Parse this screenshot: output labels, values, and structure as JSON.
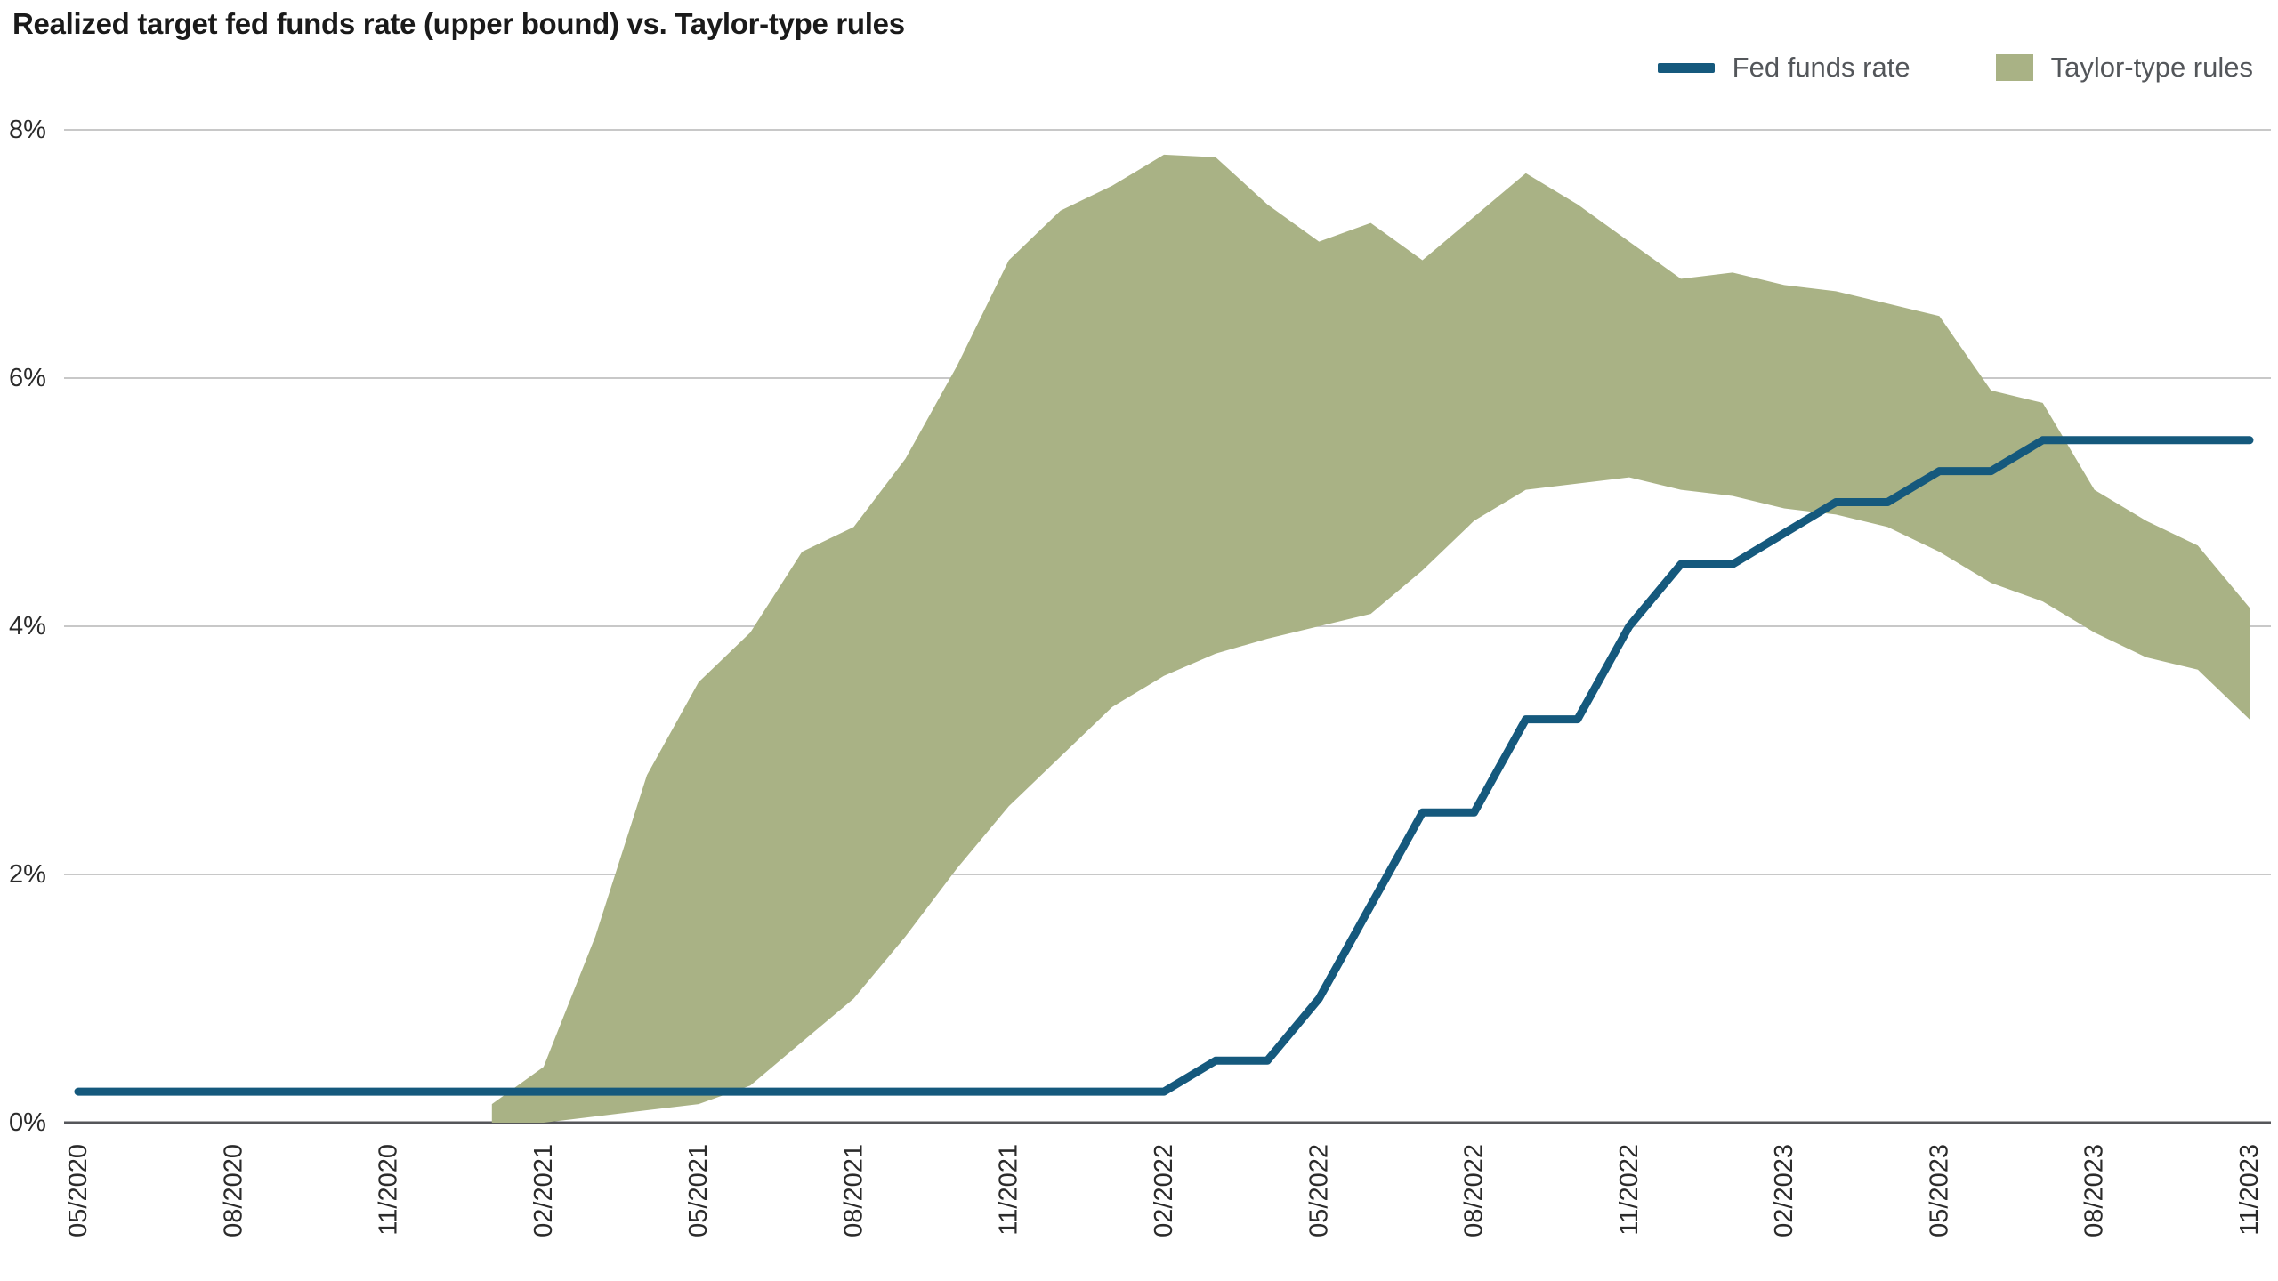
{
  "title": "Realized target fed funds rate (upper bound) vs. Taylor-type rules",
  "legend": {
    "fed_label": "Fed funds rate",
    "taylor_label": "Taylor-type rules"
  },
  "colors": {
    "fed_line": "#15597d",
    "band": "#a9b285",
    "grid": "#b5b5b5",
    "axis": "#55565a",
    "text": "#2b2b2b"
  },
  "chart_data": {
    "type": "area",
    "title": "Realized target fed funds rate (upper bound) vs. Taylor-type rules",
    "xlabel": "",
    "ylabel": "",
    "ylim": [
      0,
      8
    ],
    "y_ticks": [
      0,
      2,
      4,
      6,
      8
    ],
    "y_tick_suffix": "%",
    "grid": true,
    "legend_position": "top-right",
    "months": [
      "05/2020",
      "06/2020",
      "07/2020",
      "08/2020",
      "09/2020",
      "10/2020",
      "11/2020",
      "12/2020",
      "01/2021",
      "02/2021",
      "03/2021",
      "04/2021",
      "05/2021",
      "06/2021",
      "07/2021",
      "08/2021",
      "09/2021",
      "10/2021",
      "11/2021",
      "12/2021",
      "01/2022",
      "02/2022",
      "03/2022",
      "04/2022",
      "05/2022",
      "06/2022",
      "07/2022",
      "08/2022",
      "09/2022",
      "10/2022",
      "11/2022",
      "12/2022",
      "01/2023",
      "02/2023",
      "03/2023",
      "04/2023",
      "05/2023",
      "06/2023",
      "07/2023",
      "08/2023",
      "09/2023",
      "10/2023",
      "11/2023"
    ],
    "x_tick_indices": [
      0,
      3,
      6,
      9,
      12,
      15,
      18,
      21,
      24,
      27,
      30,
      33,
      36,
      39,
      42
    ],
    "x_tick_labels": [
      "05/2020",
      "08/2020",
      "11/2020",
      "02/2021",
      "05/2021",
      "08/2021",
      "11/2021",
      "02/2022",
      "05/2022",
      "08/2022",
      "11/2022",
      "02/2023",
      "05/2023",
      "08/2023",
      "11/2023"
    ],
    "series": [
      {
        "name": "Fed funds rate",
        "role": "line",
        "values": [
          0.25,
          0.25,
          0.25,
          0.25,
          0.25,
          0.25,
          0.25,
          0.25,
          0.25,
          0.25,
          0.25,
          0.25,
          0.25,
          0.25,
          0.25,
          0.25,
          0.25,
          0.25,
          0.25,
          0.25,
          0.25,
          0.25,
          0.5,
          0.5,
          1.0,
          1.75,
          2.5,
          2.5,
          3.25,
          3.25,
          4.0,
          4.5,
          4.5,
          4.75,
          5.0,
          5.0,
          5.25,
          5.25,
          5.5,
          5.5,
          5.5,
          5.5,
          5.5
        ]
      },
      {
        "name": "Taylor-type rules (upper bound)",
        "role": "band_upper",
        "values": [
          null,
          null,
          null,
          null,
          null,
          null,
          null,
          null,
          0.15,
          0.45,
          1.5,
          2.8,
          3.55,
          3.95,
          4.6,
          4.8,
          5.35,
          6.1,
          6.95,
          7.35,
          7.55,
          7.8,
          7.78,
          7.4,
          7.1,
          7.25,
          6.95,
          7.3,
          7.65,
          7.4,
          7.1,
          6.8,
          6.85,
          6.75,
          6.7,
          6.6,
          6.5,
          5.9,
          5.8,
          5.1,
          4.85,
          4.65,
          4.15
        ]
      },
      {
        "name": "Taylor-type rules (lower bound)",
        "role": "band_lower",
        "values": [
          null,
          null,
          null,
          null,
          null,
          null,
          null,
          null,
          0.0,
          0.0,
          0.05,
          0.1,
          0.15,
          0.3,
          0.65,
          1.0,
          1.5,
          2.05,
          2.55,
          2.95,
          3.35,
          3.6,
          3.78,
          3.9,
          4.0,
          4.1,
          4.45,
          4.85,
          5.1,
          5.15,
          5.2,
          5.1,
          5.05,
          4.95,
          4.9,
          4.8,
          4.6,
          4.35,
          4.2,
          3.95,
          3.75,
          3.65,
          3.25
        ]
      }
    ]
  }
}
